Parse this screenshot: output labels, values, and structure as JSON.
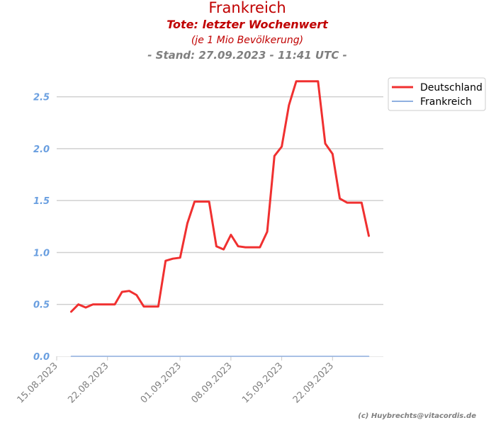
{
  "chart_data": {
    "type": "line",
    "title": "Frankreich",
    "subtitle": "Tote: letzter Wochenwert",
    "subtitle_note": "(je 1 Mio Bevölkerung)",
    "stand": "- Stand: 27.09.2023 - 11:41 UTC -",
    "copyright": "(c) Huybrechts@vitacordis.de",
    "x_axis": {
      "type": "date",
      "range": [
        "2023-08-15",
        "2023-09-29"
      ],
      "tick_values": [
        "2023-08-15",
        "2023-08-22",
        "2023-09-01",
        "2023-09-08",
        "2023-09-15",
        "2023-09-22"
      ],
      "tick_labels": [
        "15.08.2023",
        "22.08.2023",
        "01.09.2023",
        "08.09.2023",
        "15.09.2023",
        "22.09.2023"
      ]
    },
    "y_axis": {
      "range": [
        0,
        2.75
      ],
      "tick_values": [
        0,
        0.5,
        1,
        1.5,
        2,
        2.5
      ],
      "tick_labels": [
        "0.0",
        "0.5",
        "1.0",
        "1.5",
        "2.0",
        "2.5"
      ],
      "grid": true
    },
    "legend": {
      "position": "top-right"
    },
    "series": [
      {
        "name": "Deutschland",
        "color": "#f03030",
        "x": [
          "2023-08-17",
          "2023-08-18",
          "2023-08-19",
          "2023-08-20",
          "2023-08-21",
          "2023-08-22",
          "2023-08-23",
          "2023-08-24",
          "2023-08-25",
          "2023-08-26",
          "2023-08-27",
          "2023-08-28",
          "2023-08-29",
          "2023-08-30",
          "2023-08-31",
          "2023-09-01",
          "2023-09-02",
          "2023-09-03",
          "2023-09-04",
          "2023-09-05",
          "2023-09-06",
          "2023-09-07",
          "2023-09-08",
          "2023-09-09",
          "2023-09-10",
          "2023-09-11",
          "2023-09-12",
          "2023-09-13",
          "2023-09-14",
          "2023-09-15",
          "2023-09-16",
          "2023-09-17",
          "2023-09-18",
          "2023-09-19",
          "2023-09-20",
          "2023-09-21",
          "2023-09-22",
          "2023-09-23",
          "2023-09-24",
          "2023-09-25",
          "2023-09-26",
          "2023-09-27"
        ],
        "values": [
          0.43,
          0.5,
          0.47,
          0.5,
          0.5,
          0.5,
          0.5,
          0.62,
          0.63,
          0.59,
          0.48,
          0.48,
          0.48,
          0.92,
          0.94,
          0.95,
          1.28,
          1.49,
          1.49,
          1.49,
          1.06,
          1.03,
          1.17,
          1.06,
          1.05,
          1.05,
          1.05,
          1.2,
          1.93,
          2.02,
          2.42,
          2.65,
          2.65,
          2.65,
          2.65,
          2.05,
          1.95,
          1.52,
          1.48,
          1.48,
          1.48,
          1.16
        ]
      },
      {
        "name": "Frankreich",
        "color": "#8fb0e0",
        "x": [
          "2023-08-17",
          "2023-08-22",
          "2023-08-27",
          "2023-09-01",
          "2023-09-06",
          "2023-09-11",
          "2023-09-16",
          "2023-09-21",
          "2023-09-27"
        ],
        "values": [
          0,
          0,
          0,
          0,
          0,
          0,
          0,
          0,
          0
        ]
      }
    ]
  }
}
